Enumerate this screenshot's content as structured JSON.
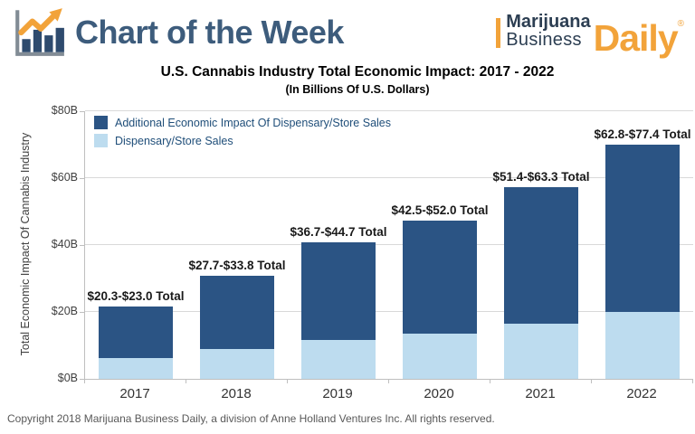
{
  "header": {
    "title": "Chart of the Week",
    "logo": {
      "line1": "Marijuana",
      "line2": "Business",
      "line3": "Daily",
      "registered": "®"
    }
  },
  "chart_data": {
    "type": "bar",
    "stacked": true,
    "title": "U.S. Cannabis Industry Total Economic Impact: 2017 - 2022",
    "subtitle": "(In Billions Of U.S. Dollars)",
    "categories": [
      "2017",
      "2018",
      "2019",
      "2020",
      "2021",
      "2022"
    ],
    "series": [
      {
        "name": "Dispensary/Store Sales",
        "color": "#BDDCEF",
        "values": [
          6.2,
          8.8,
          11.6,
          13.5,
          16.4,
          20.0
        ]
      },
      {
        "name": "Additional Economic Impact Of Dispensary/Store Sales",
        "color": "#2B5484",
        "values": [
          15.4,
          22.0,
          29.1,
          33.8,
          41.0,
          50.1
        ]
      }
    ],
    "totals_plotted": [
      21.6,
      30.8,
      40.7,
      47.3,
      57.4,
      70.1
    ],
    "total_ranges": [
      [
        20.3,
        23.0
      ],
      [
        27.7,
        33.8
      ],
      [
        36.7,
        44.7
      ],
      [
        42.5,
        52.0
      ],
      [
        51.4,
        63.3
      ],
      [
        62.8,
        77.4
      ]
    ],
    "total_labels": [
      "$20.3-$23.0 Total",
      "$27.7-$33.8 Total",
      "$36.7-$44.7 Total",
      "$42.5-$52.0 Total",
      "$51.4-$63.3 Total",
      "$62.8-$77.4 Total"
    ],
    "xlabel": "",
    "ylabel": "Total Economic Impact Of Cannabis Industry",
    "ylim": [
      0,
      80
    ],
    "ytick_values": [
      0,
      20,
      40,
      60,
      80
    ],
    "ytick_labels": [
      "$0B",
      "$20B",
      "$40B",
      "$60B",
      "$80B"
    ],
    "legend": [
      "Additional Economic Impact Of Dispensary/Store Sales",
      "Dispensary/Store Sales"
    ],
    "legend_position": "top-left",
    "grid": true
  },
  "colors": {
    "dark_series": "#2B5484",
    "light_series": "#BDDCEF",
    "accent_orange": "#F2A33A",
    "header_text": "#3D5C7C",
    "logo_navy": "#2C3E52",
    "legend_text": "#1F4E79",
    "gridline": "#D9D9D9"
  },
  "footer": {
    "copyright": "Copyright 2018 Marijuana Business Daily, a division of Anne Holland Ventures Inc. All rights reserved."
  }
}
